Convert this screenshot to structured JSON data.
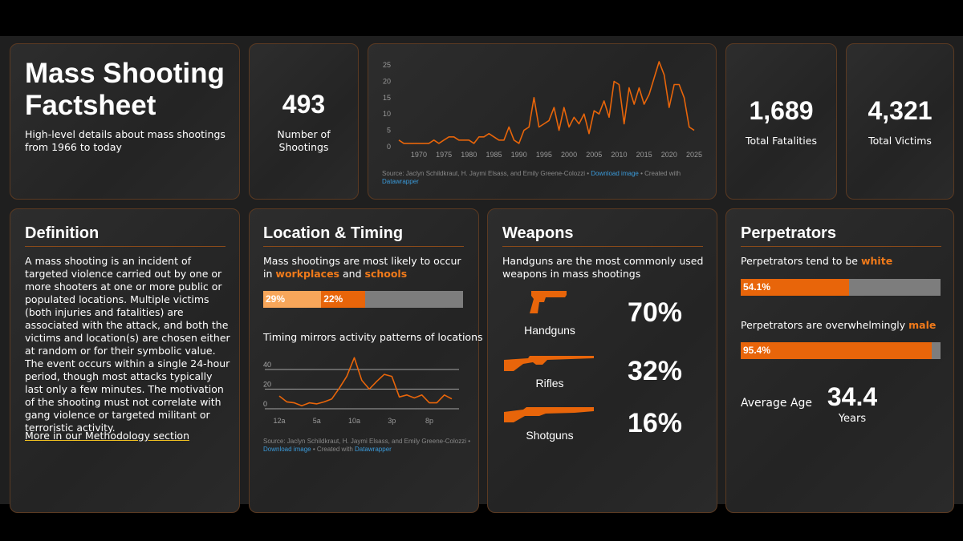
{
  "header": {
    "title": "Mass Shooting Factsheet",
    "subtitle": "High-level details about mass shootings from 1966 to today"
  },
  "shootings": {
    "value": 493,
    "label": "Number of Shootings"
  },
  "fatalities": {
    "value": "1,689",
    "label": "Total Fatalities"
  },
  "victims": {
    "value": "4,321",
    "label": "Total Victims"
  },
  "timeline": {
    "type": "line",
    "color": "#e8650a",
    "x": [
      1966,
      1967,
      1968,
      1969,
      1970,
      1971,
      1972,
      1973,
      1974,
      1975,
      1976,
      1977,
      1978,
      1979,
      1980,
      1981,
      1982,
      1983,
      1984,
      1985,
      1986,
      1987,
      1988,
      1989,
      1990,
      1991,
      1992,
      1993,
      1994,
      1995,
      1996,
      1997,
      1998,
      1999,
      2000,
      2001,
      2002,
      2003,
      2004,
      2005,
      2006,
      2007,
      2008,
      2009,
      2010,
      2011,
      2012,
      2013,
      2014,
      2015,
      2016,
      2017,
      2018,
      2019,
      2020,
      2021,
      2022,
      2023,
      2024,
      2025
    ],
    "values": [
      2,
      1,
      1,
      1,
      1,
      1,
      1,
      2,
      1,
      2,
      3,
      3,
      2,
      2,
      2,
      1,
      3,
      3,
      4,
      3,
      2,
      2,
      6,
      2,
      1,
      5,
      6,
      15,
      6,
      7,
      8,
      12,
      5,
      12,
      6,
      9,
      7,
      10,
      4,
      11,
      10,
      14,
      9,
      20,
      19,
      7,
      18,
      13,
      18,
      13,
      16,
      21,
      26,
      22,
      12,
      19,
      19,
      15,
      6,
      5
    ],
    "xlim": [
      1966,
      2025
    ],
    "xticks": [
      1970,
      1975,
      1980,
      1985,
      1990,
      1995,
      2000,
      2005,
      2010,
      2015,
      2020,
      2025
    ],
    "ylim": [
      0,
      26
    ],
    "yticks": [
      0,
      5,
      10,
      15,
      20,
      25
    ],
    "source": "Source: Jaclyn Schildkraut, H. Jaymi Elsass, and Emily Greene-Colozzi •",
    "download": "Download image",
    "created": "• Created with",
    "tool": "Datawrapper"
  },
  "definition": {
    "title": "Definition",
    "text": "A mass shooting is an incident of targeted violence carried out by one or more shooters at one or more public or populated locations. Multiple victims (both injuries and fatalities) are associated with the attack, and both the victims and location(s) are chosen either at random or for their symbolic value. The event occurs within a single 24-hour period, though most attacks typically last only a few minutes. The motivation of the shooting must not correlate with gang violence or targeted militant or terroristic activity.",
    "link": "More in our Methodology section"
  },
  "location": {
    "title": "Location & Timing",
    "intro": "Mass shootings are most likely to occur in",
    "workplaces": "workplaces",
    "and": "and",
    "schools": "schools",
    "bar": {
      "values": [
        29,
        22
      ],
      "value_labels": [
        "29%",
        "22%"
      ],
      "colors": [
        "#f7a65a",
        "#e8650a"
      ],
      "xlim": [
        0,
        100
      ]
    },
    "timing": "Timing mirrors activity patterns of locations",
    "chart": {
      "type": "line",
      "color": "#e8650a",
      "categories": [
        "12a",
        null,
        null,
        null,
        null,
        "5a",
        null,
        null,
        null,
        null,
        "10a",
        null,
        null,
        null,
        null,
        "3p",
        null,
        null,
        null,
        null,
        "8p",
        null,
        null,
        null
      ],
      "values": [
        13,
        7,
        6,
        3,
        6,
        5,
        7,
        10,
        21,
        33,
        52,
        29,
        20,
        28,
        35,
        33,
        12,
        14,
        11,
        14,
        6,
        6,
        14,
        10
      ],
      "ylim": [
        0,
        55
      ],
      "yticks": [
        0,
        20,
        40
      ],
      "grid": true
    },
    "source": "Source: Jaclyn Schildkraut, H. Jaymi Elsass, and Emily Greene-Colozzi •",
    "download": "Download image",
    "created": "• Created with",
    "tool": "Datawrapper"
  },
  "weapons": {
    "title": "Weapons",
    "intro": "Handguns are the most commonly used weapons in mass shootings",
    "items": [
      {
        "name": "Handguns",
        "share": "70%"
      },
      {
        "name": "Rifles",
        "share": "32%"
      },
      {
        "name": "Shotguns",
        "share": "16%"
      }
    ]
  },
  "perpetrators": {
    "title": "Perpetrators",
    "race_text": "Perpetrators tend to be",
    "race": "white",
    "race_bar": {
      "value": 54.1,
      "value_label": "54.1%",
      "xlim": [
        0,
        100
      ]
    },
    "sex_text": "Perpetrators are overwhelmingly",
    "sex": "male",
    "sex_bar": {
      "value": 95.4,
      "value_label": "95.4%",
      "xlim": [
        0,
        100
      ]
    },
    "age_label": "Average Age",
    "age": "34.4",
    "age_unit": "Years"
  }
}
